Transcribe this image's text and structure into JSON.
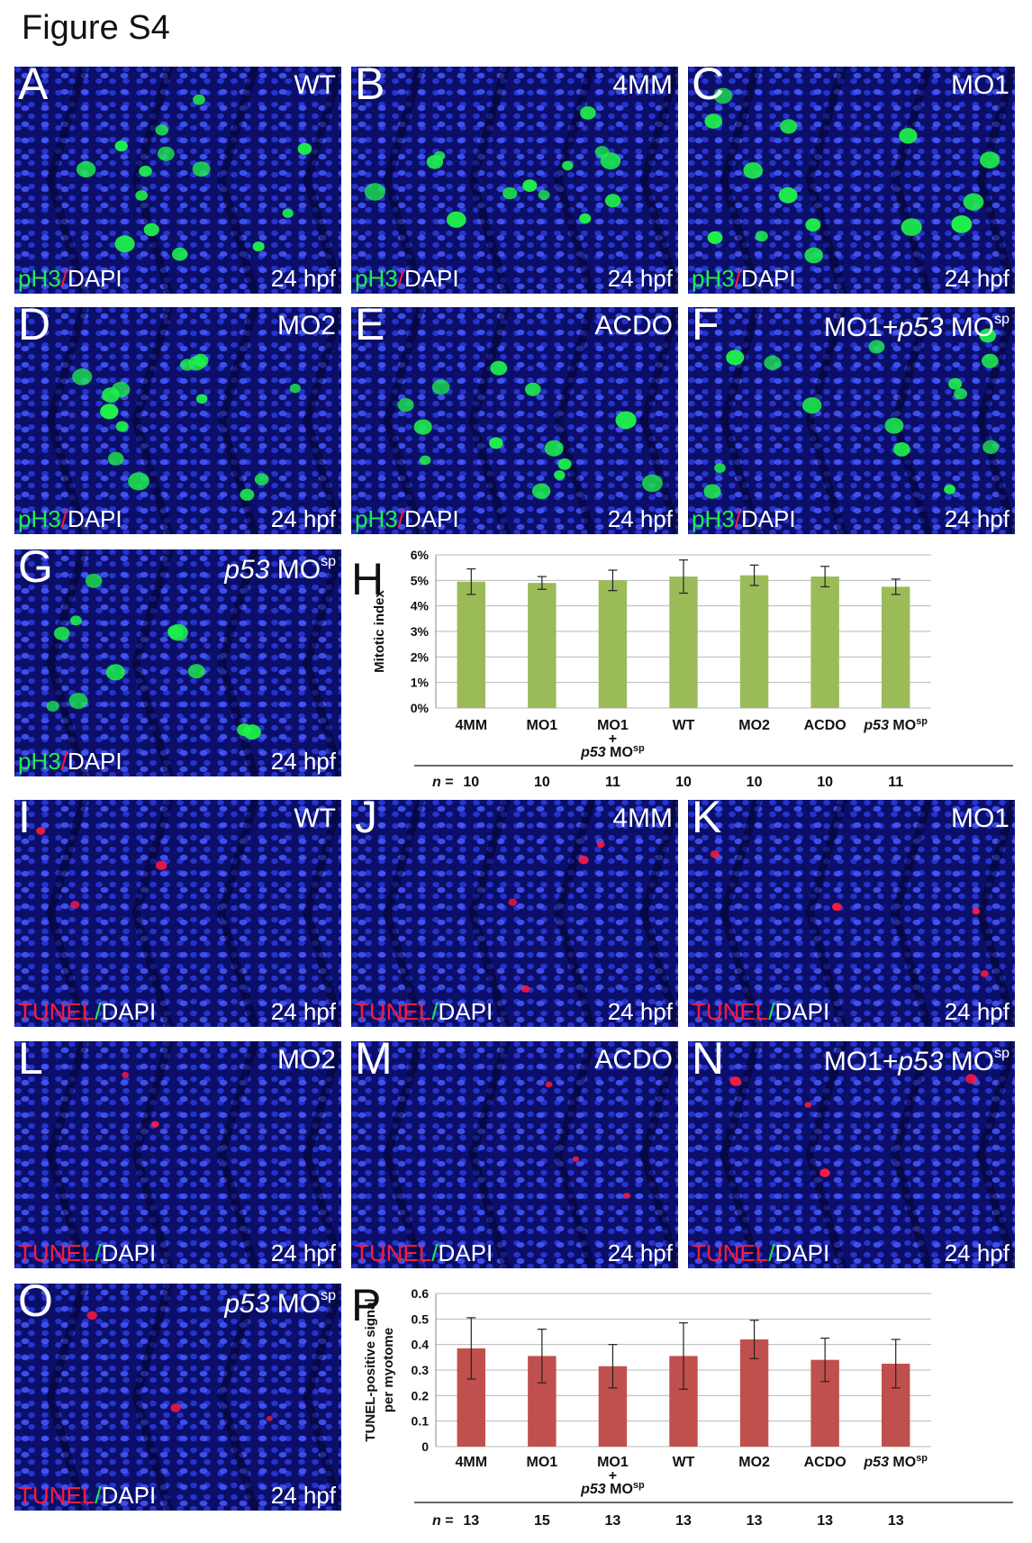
{
  "figure_title": "Figure S4",
  "panels": [
    {
      "letter": "A",
      "condition": "WT",
      "condition_parts": [
        {
          "t": "WT",
          "i": false
        }
      ],
      "stain_a": "pH3",
      "stain_b": "DAPI",
      "time": "24 hpf",
      "type": "ph3",
      "signal_color": "#1ef04a",
      "spot_count": 14
    },
    {
      "letter": "B",
      "condition": "4MM",
      "condition_parts": [
        {
          "t": "4MM",
          "i": false
        }
      ],
      "stain_a": "pH3",
      "stain_b": "DAPI",
      "time": "24 hpf",
      "type": "ph3",
      "signal_color": "#1ef04a",
      "spot_count": 13
    },
    {
      "letter": "C",
      "condition": "MO1",
      "condition_parts": [
        {
          "t": "MO1",
          "i": false
        }
      ],
      "stain_a": "pH3",
      "stain_b": "DAPI",
      "time": "24 hpf",
      "type": "ph3",
      "signal_color": "#1ef04a",
      "spot_count": 14
    },
    {
      "letter": "D",
      "condition": "MO2",
      "condition_parts": [
        {
          "t": "MO2",
          "i": false
        }
      ],
      "stain_a": "pH3",
      "stain_b": "DAPI",
      "time": "24 hpf",
      "type": "ph3",
      "signal_color": "#1ef04a",
      "spot_count": 15
    },
    {
      "letter": "E",
      "condition": "ACDO",
      "condition_parts": [
        {
          "t": "ACDO",
          "i": false
        }
      ],
      "stain_a": "pH3",
      "stain_b": "DAPI",
      "time": "24 hpf",
      "type": "ph3",
      "signal_color": "#1ef04a",
      "spot_count": 13
    },
    {
      "letter": "F",
      "condition": "MO1+p53 MOsp",
      "condition_parts": [
        {
          "t": "MO1+",
          "i": false
        },
        {
          "t": "p53",
          "i": true
        },
        {
          "t": " MO",
          "i": false
        },
        {
          "t": "sp",
          "i": false,
          "sup": true
        }
      ],
      "stain_a": "pH3",
      "stain_b": "DAPI",
      "time": "24 hpf",
      "type": "ph3",
      "signal_color": "#1ef04a",
      "spot_count": 14
    },
    {
      "letter": "G",
      "condition": "p53 MOsp",
      "condition_parts": [
        {
          "t": "p53",
          "i": true
        },
        {
          "t": " MO",
          "i": false
        },
        {
          "t": "sp",
          "i": false,
          "sup": true
        }
      ],
      "stain_a": "pH3",
      "stain_b": "DAPI",
      "time": "24 hpf",
      "type": "ph3",
      "signal_color": "#1ef04a",
      "spot_count": 11
    },
    {
      "letter": "I",
      "condition": "WT",
      "condition_parts": [
        {
          "t": "WT",
          "i": false
        }
      ],
      "stain_a": "TUNEL",
      "stain_b": "DAPI",
      "time": "24 hpf",
      "type": "tunel",
      "signal_color": "#ff1a3c",
      "spot_count": 3
    },
    {
      "letter": "J",
      "condition": "4MM",
      "condition_parts": [
        {
          "t": "4MM",
          "i": false
        }
      ],
      "stain_a": "TUNEL",
      "stain_b": "DAPI",
      "time": "24 hpf",
      "type": "tunel",
      "signal_color": "#ff1a3c",
      "spot_count": 4
    },
    {
      "letter": "K",
      "condition": "MO1",
      "condition_parts": [
        {
          "t": "MO1",
          "i": false
        }
      ],
      "stain_a": "TUNEL",
      "stain_b": "DAPI",
      "time": "24 hpf",
      "type": "tunel",
      "signal_color": "#ff1a3c",
      "spot_count": 4
    },
    {
      "letter": "L",
      "condition": "MO2",
      "condition_parts": [
        {
          "t": "MO2",
          "i": false
        }
      ],
      "stain_a": "TUNEL",
      "stain_b": "DAPI",
      "time": "24 hpf",
      "type": "tunel",
      "signal_color": "#ff1a3c",
      "spot_count": 2
    },
    {
      "letter": "M",
      "condition": "ACDO",
      "condition_parts": [
        {
          "t": "ACDO",
          "i": false
        }
      ],
      "stain_a": "TUNEL",
      "stain_b": "DAPI",
      "time": "24 hpf",
      "type": "tunel",
      "signal_color": "#ff1a3c",
      "spot_count": 3
    },
    {
      "letter": "N",
      "condition": "MO1+p53 MOsp",
      "condition_parts": [
        {
          "t": "MO1+",
          "i": false
        },
        {
          "t": "p53",
          "i": true
        },
        {
          "t": " MO",
          "i": false
        },
        {
          "t": "sp",
          "i": false,
          "sup": true
        }
      ],
      "stain_a": "TUNEL",
      "stain_b": "DAPI",
      "time": "24 hpf",
      "type": "tunel",
      "signal_color": "#ff1a3c",
      "spot_count": 4
    },
    {
      "letter": "O",
      "condition": "p53 MOsp",
      "condition_parts": [
        {
          "t": "p53",
          "i": true
        },
        {
          "t": " MO",
          "i": false
        },
        {
          "t": "sp",
          "i": false,
          "sup": true
        }
      ],
      "stain_a": "TUNEL",
      "stain_b": "DAPI",
      "time": "24 hpf",
      "type": "tunel",
      "signal_color": "#ff1a3c",
      "spot_count": 3
    }
  ],
  "colors": {
    "ph3": "#1ef04a",
    "tunel": "#ff1a3c",
    "dapi_bg": "#0b0f6a",
    "dapi_nuclei": "#4658ff",
    "bar_green": "#9bbb59",
    "bar_red": "#c0504d"
  },
  "chart_data": [
    {
      "letter": "H",
      "type": "bar",
      "ylabel": "Mitotic index",
      "ylabel_lines": [
        "Mitotic index"
      ],
      "ylim": [
        0,
        6
      ],
      "y_ticks": [
        "0%",
        "1%",
        "2%",
        "3%",
        "4%",
        "5%",
        "6%"
      ],
      "y_tick_values": [
        0,
        1,
        2,
        3,
        4,
        5,
        6
      ],
      "grid": true,
      "bar_color": "#9bbb59",
      "categories": [
        "4MM",
        "MO1",
        "MO1 + p53 MOsp",
        "WT",
        "MO2",
        "ACDO",
        "p53 MOsp"
      ],
      "category_labels": [
        [
          [
            {
              "t": "4MM",
              "i": false
            }
          ]
        ],
        [
          [
            {
              "t": "MO1",
              "i": false
            }
          ]
        ],
        [
          [
            {
              "t": "MO1",
              "i": false
            }
          ],
          [
            {
              "t": "+",
              "i": false
            }
          ],
          [
            {
              "t": "p53",
              "i": true
            },
            {
              "t": " MO",
              "i": false
            },
            {
              "t": "sp",
              "i": false,
              "sup": true
            }
          ]
        ],
        [
          [
            {
              "t": "WT",
              "i": false
            }
          ]
        ],
        [
          [
            {
              "t": "MO2",
              "i": false
            }
          ]
        ],
        [
          [
            {
              "t": "ACDO",
              "i": false
            }
          ]
        ],
        [
          [
            {
              "t": "p53",
              "i": true
            },
            {
              "t": " MO",
              "i": false
            },
            {
              "t": "sp",
              "i": false,
              "sup": true
            }
          ]
        ]
      ],
      "values": [
        4.95,
        4.9,
        5.0,
        5.15,
        5.2,
        5.15,
        4.75
      ],
      "errors": [
        0.5,
        0.25,
        0.4,
        0.65,
        0.4,
        0.4,
        0.3
      ],
      "n_label": "n =",
      "n_values": [
        "10",
        "10",
        "11",
        "10",
        "10",
        "10",
        "11"
      ]
    },
    {
      "letter": "P",
      "type": "bar",
      "ylabel": "TUNEL-positive signal per myotome",
      "ylabel_lines": [
        "TUNEL-positive signal",
        "per myotome"
      ],
      "ylim": [
        0,
        0.6
      ],
      "y_ticks": [
        "0",
        "0.1",
        "0.2",
        "0.3",
        "0.4",
        "0.5",
        "0.6"
      ],
      "y_tick_values": [
        0,
        0.1,
        0.2,
        0.3,
        0.4,
        0.5,
        0.6
      ],
      "grid": true,
      "bar_color": "#c0504d",
      "categories": [
        "4MM",
        "MO1",
        "MO1 + p53 MOsp",
        "WT",
        "MO2",
        "ACDO",
        "p53 MOsp"
      ],
      "category_labels": [
        [
          [
            {
              "t": "4MM",
              "i": false
            }
          ]
        ],
        [
          [
            {
              "t": "MO1",
              "i": false
            }
          ]
        ],
        [
          [
            {
              "t": "MO1",
              "i": false
            }
          ],
          [
            {
              "t": "+",
              "i": false
            }
          ],
          [
            {
              "t": "p53",
              "i": true
            },
            {
              "t": " MO",
              "i": false
            },
            {
              "t": "sp",
              "i": false,
              "sup": true
            }
          ]
        ],
        [
          [
            {
              "t": "WT",
              "i": false
            }
          ]
        ],
        [
          [
            {
              "t": "MO2",
              "i": false
            }
          ]
        ],
        [
          [
            {
              "t": "ACDO",
              "i": false
            }
          ]
        ],
        [
          [
            {
              "t": "p53",
              "i": true
            },
            {
              "t": " MO",
              "i": false
            },
            {
              "t": "sp",
              "i": false,
              "sup": true
            }
          ]
        ]
      ],
      "values": [
        0.385,
        0.355,
        0.315,
        0.355,
        0.42,
        0.34,
        0.325
      ],
      "errors": [
        0.12,
        0.105,
        0.085,
        0.13,
        0.075,
        0.085,
        0.095
      ],
      "n_label": "n =",
      "n_values": [
        "13",
        "15",
        "13",
        "13",
        "13",
        "13",
        "13"
      ]
    }
  ]
}
